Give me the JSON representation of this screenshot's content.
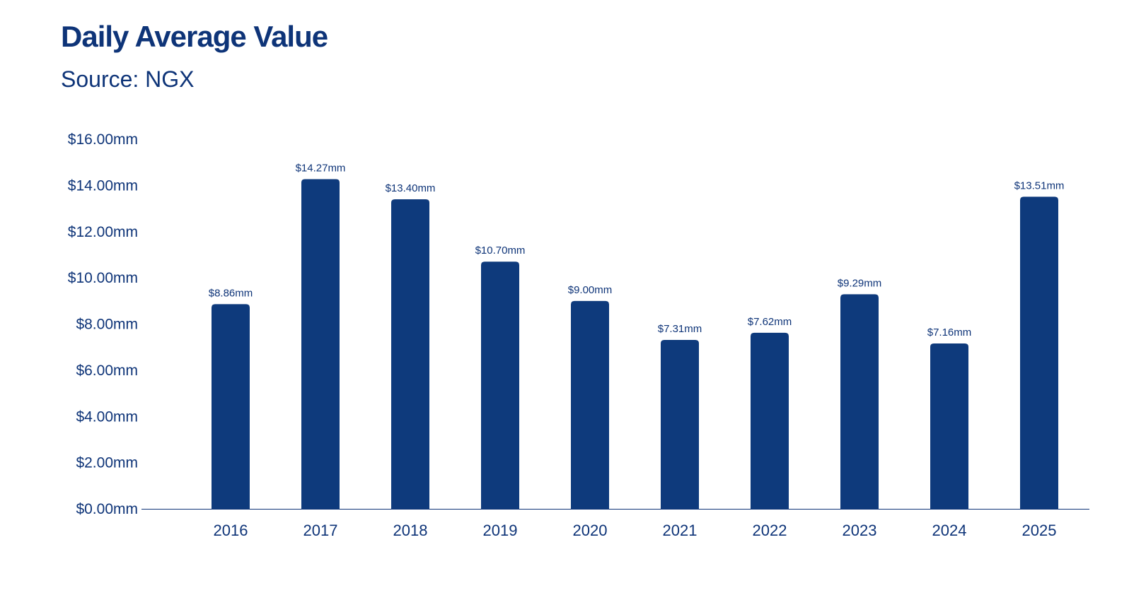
{
  "title": "Daily Average Value",
  "subtitle": "Source: NGX",
  "colors": {
    "bar": "#0e3a7c",
    "text": "#0e3478",
    "axis": "#0e3478"
  },
  "chart_data": {
    "type": "bar",
    "title": "Daily Average Value",
    "subtitle": "Source: NGX",
    "xlabel": "",
    "ylabel": "",
    "categories": [
      "2016",
      "2017",
      "2018",
      "2019",
      "2020",
      "2021",
      "2022",
      "2023",
      "2024",
      "2025"
    ],
    "values": [
      8.86,
      14.27,
      13.4,
      10.7,
      9.0,
      7.31,
      7.62,
      9.29,
      7.16,
      13.51
    ],
    "data_labels": [
      "$8.86mm",
      "$14.27mm",
      "$13.40mm",
      "$10.70mm",
      "$9.00mm",
      "$7.31mm",
      "$7.62mm",
      "$9.29mm",
      "$7.16mm",
      "$13.51mm"
    ],
    "ylim": [
      0,
      16
    ],
    "yticks": [
      0,
      2,
      4,
      6,
      8,
      10,
      12,
      14,
      16
    ],
    "ytick_labels": [
      "$0.00mm",
      "$2.00mm",
      "$4.00mm",
      "$6.00mm",
      "$8.00mm",
      "$10.00mm",
      "$12.00mm",
      "$14.00mm",
      "$16.00mm"
    ],
    "grid": false,
    "legend": "none"
  }
}
